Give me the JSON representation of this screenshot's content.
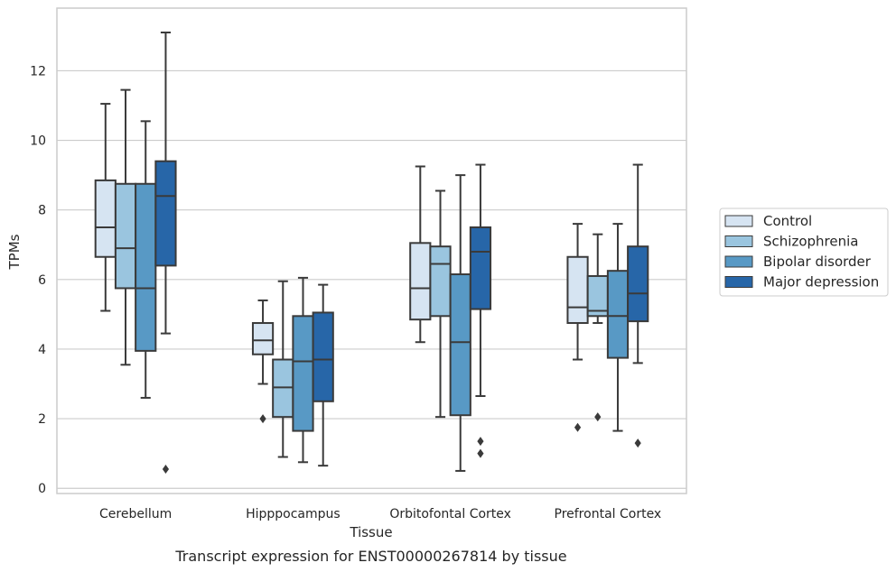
{
  "caption": "Transcript expression for ENST00000267814 by tissue",
  "chart_data": {
    "type": "box",
    "xlabel": "Tissue",
    "ylabel": "TPMs",
    "ylim": [
      -0.15,
      13.8
    ],
    "yticks": [
      0,
      2,
      4,
      6,
      8,
      10,
      12
    ],
    "grid": "horizontal",
    "legend_position": "right",
    "categories": [
      "Cerebellum",
      "Hipppocampus",
      "Orbitofontal Cortex",
      "Prefrontal Cortex"
    ],
    "series": [
      {
        "name": "Control",
        "color": "#d6e4f2",
        "boxes": [
          {
            "whisker_low": 5.1,
            "q1": 6.65,
            "median": 7.5,
            "q3": 8.85,
            "whisker_high": 11.05,
            "outliers": []
          },
          {
            "whisker_low": 3.0,
            "q1": 3.85,
            "median": 4.25,
            "q3": 4.75,
            "whisker_high": 5.4,
            "outliers": [
              2.0
            ]
          },
          {
            "whisker_low": 4.2,
            "q1": 4.85,
            "median": 5.75,
            "q3": 7.05,
            "whisker_high": 9.25,
            "outliers": []
          },
          {
            "whisker_low": 3.7,
            "q1": 4.75,
            "median": 5.2,
            "q3": 6.65,
            "whisker_high": 7.6,
            "outliers": [
              1.75
            ]
          }
        ]
      },
      {
        "name": "Schizophrenia",
        "color": "#9ac5df",
        "boxes": [
          {
            "whisker_low": 3.55,
            "q1": 5.75,
            "median": 6.9,
            "q3": 8.75,
            "whisker_high": 11.45,
            "outliers": []
          },
          {
            "whisker_low": 0.9,
            "q1": 2.05,
            "median": 2.9,
            "q3": 3.7,
            "whisker_high": 5.95,
            "outliers": []
          },
          {
            "whisker_low": 2.05,
            "q1": 4.95,
            "median": 6.45,
            "q3": 6.95,
            "whisker_high": 8.55,
            "outliers": []
          },
          {
            "whisker_low": 4.75,
            "q1": 4.95,
            "median": 5.1,
            "q3": 6.1,
            "whisker_high": 7.3,
            "outliers": [
              2.05
            ]
          }
        ]
      },
      {
        "name": "Bipolar disorder",
        "color": "#5899c5",
        "boxes": [
          {
            "whisker_low": 2.6,
            "q1": 3.95,
            "median": 5.75,
            "q3": 8.75,
            "whisker_high": 10.55,
            "outliers": []
          },
          {
            "whisker_low": 0.75,
            "q1": 1.65,
            "median": 3.65,
            "q3": 4.95,
            "whisker_high": 6.05,
            "outliers": []
          },
          {
            "whisker_low": 0.5,
            "q1": 2.1,
            "median": 4.2,
            "q3": 6.15,
            "whisker_high": 9.0,
            "outliers": []
          },
          {
            "whisker_low": 1.65,
            "q1": 3.75,
            "median": 4.95,
            "q3": 6.25,
            "whisker_high": 7.6,
            "outliers": []
          }
        ]
      },
      {
        "name": "Major depression",
        "color": "#2766a8",
        "boxes": [
          {
            "whisker_low": 4.45,
            "q1": 6.4,
            "median": 8.4,
            "q3": 9.4,
            "whisker_high": 13.1,
            "outliers": [
              0.55
            ]
          },
          {
            "whisker_low": 0.65,
            "q1": 2.5,
            "median": 3.7,
            "q3": 5.05,
            "whisker_high": 5.85,
            "outliers": []
          },
          {
            "whisker_low": 2.65,
            "q1": 5.15,
            "median": 6.8,
            "q3": 7.5,
            "whisker_high": 9.3,
            "outliers": [
              1.35,
              1.0
            ]
          },
          {
            "whisker_low": 3.6,
            "q1": 4.8,
            "median": 5.6,
            "q3": 6.95,
            "whisker_high": 9.3,
            "outliers": [
              1.3
            ]
          }
        ]
      }
    ]
  }
}
